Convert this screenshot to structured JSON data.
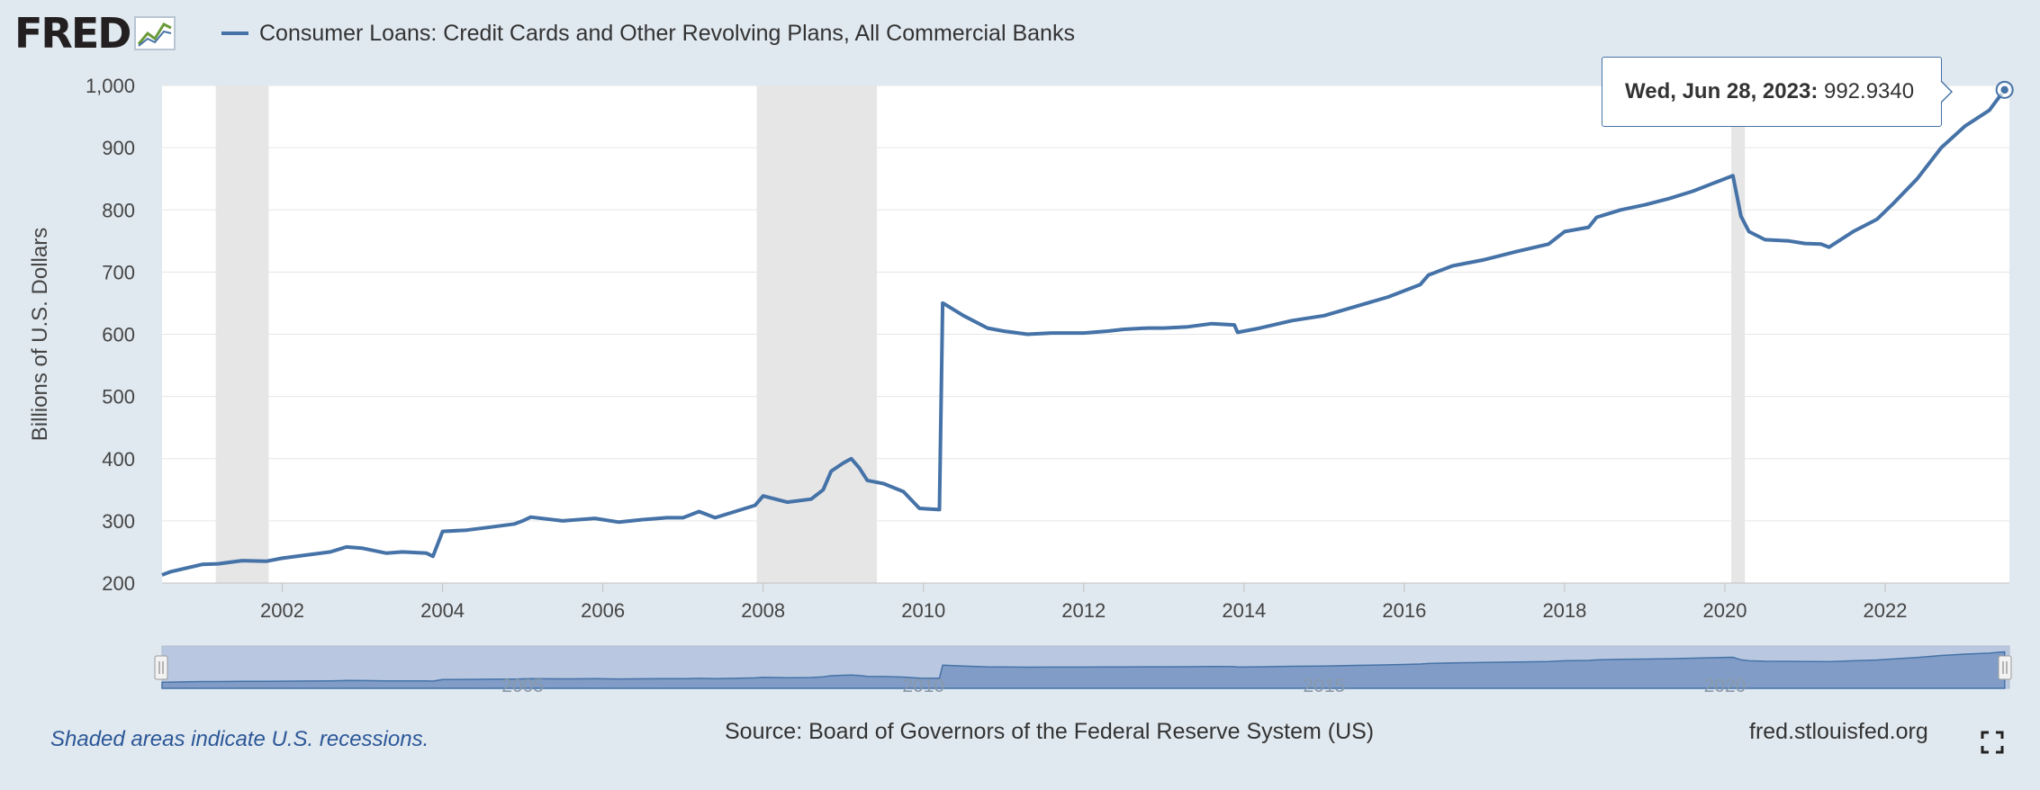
{
  "header": {
    "logo_text": "FRED",
    "legend_label": "Consumer Loans: Credit Cards and Other Revolving Plans, All Commercial Banks",
    "series_color": "#4572a7"
  },
  "tooltip": {
    "date": "Wed, Jun 28, 2023:",
    "value": "992.9340"
  },
  "footer": {
    "recession_note": "Shaded areas indicate U.S. recessions.",
    "source": "Source: Board of Governors of the Federal Reserve System (US)",
    "site": "fred.stlouisfed.org",
    "fullscreen_icon": "fullscreen-icon"
  },
  "chart_data": {
    "type": "line",
    "title": "",
    "xlabel": "",
    "ylabel": "Billions of U.S. Dollars",
    "xlim": [
      2000.5,
      2023.55
    ],
    "ylim": [
      200,
      1000
    ],
    "y_ticks": [
      200,
      300,
      400,
      500,
      600,
      700,
      800,
      900,
      1000
    ],
    "x_ticks": [
      2002,
      2004,
      2006,
      2008,
      2010,
      2012,
      2014,
      2016,
      2018,
      2020,
      2022
    ],
    "navigator_ticks": [
      2005,
      2010,
      2015,
      2020
    ],
    "grid": true,
    "recessions": [
      [
        2001.17,
        2001.83
      ],
      [
        2007.92,
        2009.42
      ],
      [
        2020.08,
        2020.25
      ]
    ],
    "recession_color": "#e6e6e6",
    "series": [
      {
        "name": "Consumer Loans: Credit Cards and Other Revolving Plans, All Commercial Banks",
        "color": "#4572a7",
        "x": [
          2000.5,
          2000.6,
          2000.8,
          2001.0,
          2001.2,
          2001.5,
          2001.8,
          2002.0,
          2002.3,
          2002.6,
          2002.8,
          2003.0,
          2003.3,
          2003.5,
          2003.8,
          2003.88,
          2004.0,
          2004.3,
          2004.6,
          2004.9,
          2005.0,
          2005.1,
          2005.5,
          2005.9,
          2006.2,
          2006.5,
          2006.8,
          2007.0,
          2007.2,
          2007.4,
          2007.7,
          2007.9,
          2008.0,
          2008.3,
          2008.6,
          2008.75,
          2008.85,
          2009.0,
          2009.1,
          2009.2,
          2009.3,
          2009.5,
          2009.75,
          2009.95,
          2010.2,
          2010.24,
          2010.27,
          2010.5,
          2010.8,
          2011.0,
          2011.3,
          2011.6,
          2012.0,
          2012.3,
          2012.5,
          2012.8,
          2013.0,
          2013.3,
          2013.6,
          2013.88,
          2013.92,
          2014.2,
          2014.6,
          2015.0,
          2015.4,
          2015.8,
          2016.0,
          2016.2,
          2016.3,
          2016.6,
          2017.0,
          2017.4,
          2017.8,
          2018.0,
          2018.3,
          2018.4,
          2018.7,
          2019.0,
          2019.3,
          2019.6,
          2019.9,
          2020.1,
          2020.2,
          2020.3,
          2020.5,
          2020.8,
          2021.0,
          2021.2,
          2021.3,
          2021.6,
          2021.9,
          2022.1,
          2022.4,
          2022.7,
          2023.0,
          2023.3,
          2023.49
        ],
        "values": [
          213,
          218,
          224,
          230,
          231,
          236,
          235,
          240,
          245,
          250,
          258,
          256,
          248,
          250,
          248,
          243,
          283,
          285,
          290,
          295,
          300,
          306,
          300,
          304,
          298,
          302,
          305,
          305,
          315,
          305,
          317,
          325,
          340,
          330,
          335,
          350,
          380,
          393,
          400,
          385,
          365,
          360,
          347,
          320,
          318,
          650,
          648,
          630,
          610,
          605,
          600,
          602,
          602,
          605,
          608,
          610,
          610,
          612,
          617,
          615,
          603,
          610,
          622,
          630,
          645,
          660,
          670,
          680,
          695,
          710,
          720,
          733,
          745,
          765,
          772,
          788,
          800,
          808,
          818,
          830,
          845,
          855,
          790,
          765,
          752,
          750,
          746,
          745,
          740,
          765,
          785,
          810,
          850,
          900,
          935,
          960,
          993
        ]
      }
    ]
  }
}
